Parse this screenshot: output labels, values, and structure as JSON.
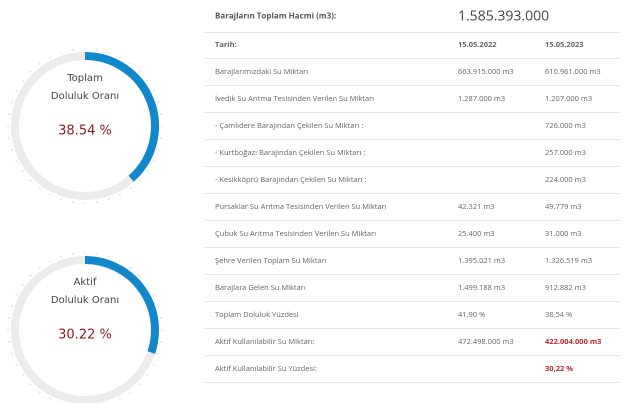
{
  "gauges": [
    {
      "label_lines": [
        "Toplam",
        "Doluluk Oranı"
      ],
      "value": 38.54,
      "value_label": "38.54 %"
    },
    {
      "label_lines": [
        "Aktif",
        "Doluluk Oranı"
      ],
      "value": 30.22,
      "value_label": "30.22 %"
    }
  ],
  "table": {
    "header": {
      "label": "Barajların Toplam Hacmi (m3):",
      "value": "1.585.393.000"
    },
    "columns": {
      "label": "Tarih:",
      "dates": [
        "15.05.2022",
        "15.05.2023"
      ]
    },
    "rows": [
      {
        "label": "Barajlarımızdaki Su Miktarı",
        "cells": [
          "663.915.000 m3",
          "610.961.000 m3"
        ]
      },
      {
        "label": "İvedik Su Arıtma Tesisinden Verilen Su Miktarı",
        "cells": [
          "1.287.000 m3",
          "1.207.000 m3"
        ]
      },
      {
        "label": "- Çamlıdere Barajından Çekilen Su Miktarı :",
        "cells": [
          null,
          "726.000 m3"
        ]
      },
      {
        "label": "- Kurtboğazı Barajından Çekilen Su Miktarı :",
        "cells": [
          null,
          "257.000 m3"
        ]
      },
      {
        "label": "- Kesikköprü Barajından Çekilen Su Miktarı :",
        "cells": [
          null,
          "224.000 m3"
        ]
      },
      {
        "label": "Pursaklar Su Arıtma Tesisinden Verilen Su Miktarı",
        "cells": [
          "42.321 m3",
          "49.779 m3"
        ]
      },
      {
        "label": "Çubuk Su Arıtma Tesisinden Verilen Su Miktarı",
        "cells": [
          "25.400 m3",
          "31.000 m3"
        ]
      },
      {
        "label": "Şehre Verilen Toplam Su Miktarı",
        "cells": [
          "1.395.021 m3",
          "1.326.519 m3"
        ]
      },
      {
        "label": "Barajlara Gelen Su Miktarı",
        "cells": [
          "1.499.188 m3",
          "912.882 m3"
        ]
      },
      {
        "label": "Toplam Doluluk Yüzdesi",
        "cells": [
          "41,90 %",
          "38,54 %"
        ]
      },
      {
        "label": "Aktif Kullanılabilir Su Miktarı:",
        "cells": [
          "472.498.000 m3",
          "422.004.000 m3"
        ],
        "highlight": true
      },
      {
        "label": "Aktif Kullanılabilir Su Yüzdesi:",
        "cells": [
          null,
          "30,22 %"
        ],
        "highlight": true
      }
    ]
  }
}
